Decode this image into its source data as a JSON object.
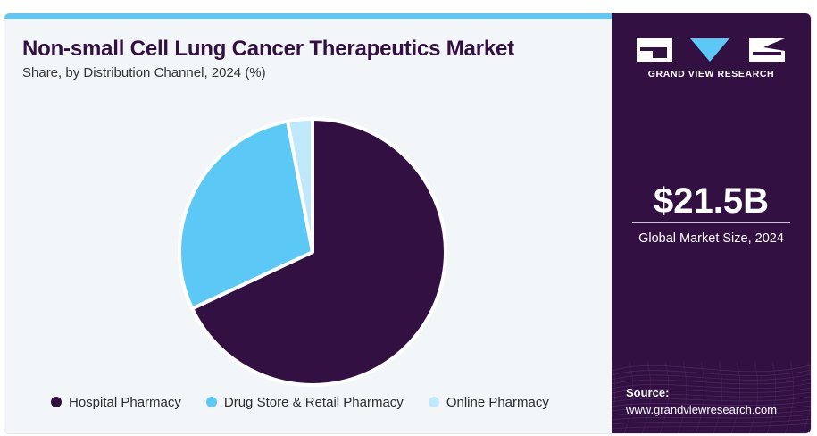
{
  "header": {
    "title": "Non-small Cell Lung Cancer Therapeutics Market",
    "subtitle": "Share, by Distribution Channel, 2024 (%)"
  },
  "chart_data": {
    "type": "pie",
    "title": "Non-small Cell Lung Cancer Therapeutics Market",
    "subtitle": "Share, by Distribution Channel, 2024 (%)",
    "categories": [
      "Hospital Pharmacy",
      "Drug Store & Retail Pharmacy",
      "Online Pharmacy"
    ],
    "values": [
      68,
      29,
      3
    ],
    "colors": [
      "#331042",
      "#5bc8f5",
      "#bfe8fa"
    ],
    "legend_position": "bottom"
  },
  "legend": {
    "items": [
      {
        "label": "Hospital Pharmacy",
        "color": "#331042"
      },
      {
        "label": "Drug Store & Retail Pharmacy",
        "color": "#5bc8f5"
      },
      {
        "label": "Online Pharmacy",
        "color": "#bfe8fa"
      }
    ]
  },
  "sidebar": {
    "brand": "GRAND VIEW RESEARCH",
    "logo_icon": "gvr-logo-icon",
    "stat_value": "$21.5B",
    "stat_label": "Global Market Size, 2024",
    "source_label": "Source:",
    "source_url": "www.grandviewresearch.com"
  },
  "colors": {
    "brand_dark": "#331042",
    "accent_blue": "#5bc8f5",
    "light_blue": "#bfe8fa",
    "panel_bg": "#f3f6f9"
  }
}
